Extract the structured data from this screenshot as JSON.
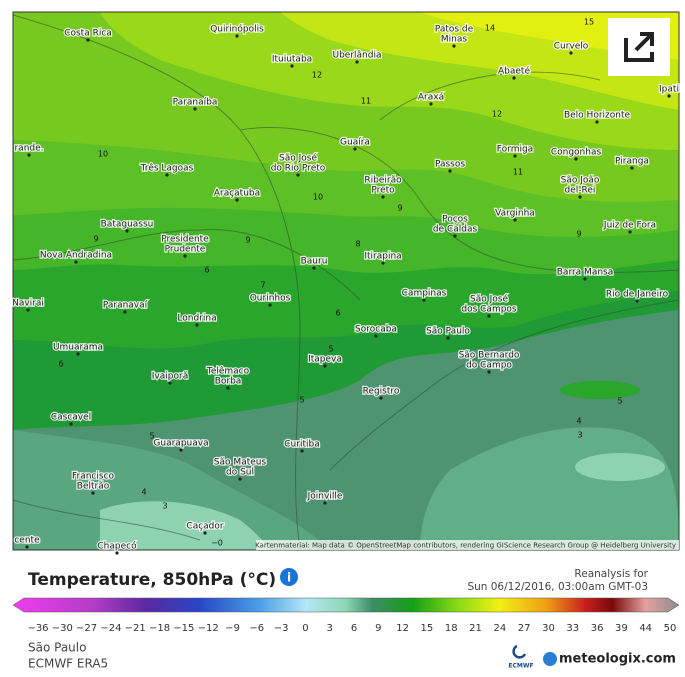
{
  "map": {
    "cities": [
      [
        "Costa Rica"
      ],
      [
        "Quirinópolis"
      ],
      [
        "Patos de",
        "Minas"
      ],
      [
        "Curvelo"
      ],
      [
        "Ituiutaba"
      ],
      [
        "Uberlândia"
      ],
      [
        "Abaeté"
      ],
      [
        "Paranaíba"
      ],
      [
        "Araxá"
      ],
      [
        "Ipati"
      ],
      [
        "Belo Horizonte"
      ],
      [
        "rande."
      ],
      [
        "Guaíra"
      ],
      [
        "Formiga"
      ],
      [
        "Congonhas"
      ],
      [
        "Três Lagoas"
      ],
      [
        "São José",
        "do Rio Preto"
      ],
      [
        "Passos"
      ],
      [
        "Piranga"
      ],
      [
        "Ribeirão",
        "Preto"
      ],
      [
        "São João",
        "del-Rei"
      ],
      [
        "Araçatuba"
      ],
      [
        "Bataguassu"
      ],
      [
        "Varginha"
      ],
      [
        "Poços",
        "de Caldas"
      ],
      [
        "Juiz de Fora"
      ],
      [
        "Presidente",
        "Prudente"
      ],
      [
        "Nova Andradina"
      ],
      [
        "Bauru"
      ],
      [
        "Itirapina"
      ],
      [
        "Barra Mansa"
      ],
      [
        "Navirai"
      ],
      [
        "Paranavaí"
      ],
      [
        "Ourinhos"
      ],
      [
        "Campinas"
      ],
      [
        "São José",
        "dos Campos"
      ],
      [
        "Rio de Janeiro"
      ],
      [
        "Londrina"
      ],
      [
        "Sorocaba"
      ],
      [
        "São Paulo"
      ],
      [
        "Umuarama"
      ],
      [
        "São Bernardo",
        "do Campo"
      ],
      [
        "Itapeva"
      ],
      [
        "Ivaiporã"
      ],
      [
        "Telêmaco",
        "Borba"
      ],
      [
        "Registro"
      ],
      [
        "Cascavel"
      ],
      [
        "Guarapuava"
      ],
      [
        "Curitiba"
      ],
      [
        "São Mateus",
        "do Sul"
      ],
      [
        "Francisco",
        "Beltrão"
      ],
      [
        "Joinville"
      ],
      [
        "Caçador"
      ],
      [
        "Chapecó"
      ],
      [
        "cente"
      ]
    ],
    "isotherm_labels": [
      "14",
      "15",
      "12",
      "11",
      "12",
      "10",
      "11",
      "10",
      "9",
      "9",
      "9",
      "9",
      "8",
      "7",
      "6",
      "6",
      "6",
      "5",
      "5",
      "5",
      "5",
      "4",
      "3",
      "4",
      "3",
      "−0"
    ],
    "attribution": "Kartenmaterial: Map data © OpenStreetMap contributors, rendering GIScience Research Group @ Heidelberg University"
  },
  "footer": {
    "title": "Temperature, 850hPa (°C)",
    "reanalysis": "Reanalysis for",
    "datetime": "Sun 06/12/2016, 03:00am GMT-03",
    "colorbar_ticks": [
      "−36",
      "−30",
      "−27",
      "−24",
      "−21",
      "−18",
      "−15",
      "−12",
      "−9",
      "−6",
      "−3",
      "0",
      "3",
      "6",
      "9",
      "12",
      "15",
      "18",
      "21",
      "24",
      "27",
      "30",
      "33",
      "36",
      "39",
      "44",
      "50"
    ],
    "location": "São Paulo",
    "model": "ECMWF ERA5",
    "ecmwf_logo": "ECMWF",
    "brand": "meteologix.com"
  }
}
